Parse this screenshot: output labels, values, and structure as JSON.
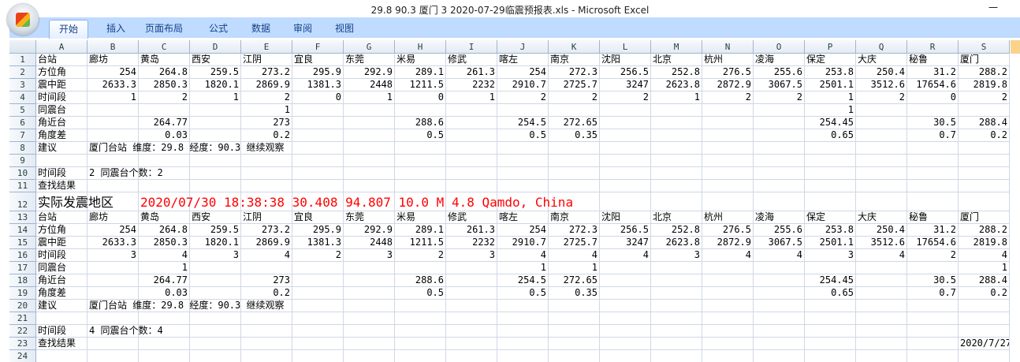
{
  "window": {
    "title": "29.8 90.3 厦门 3 2020-07-29临震预报表.xls - Microsoft Excel",
    "minimize": "—"
  },
  "ribbon": {
    "tabs": [
      "开始",
      "插入",
      "页面布局",
      "公式",
      "数据",
      "审阅",
      "视图"
    ],
    "active": "开始"
  },
  "columns": [
    "A",
    "B",
    "C",
    "D",
    "E",
    "F",
    "G",
    "H",
    "I",
    "J",
    "K",
    "L",
    "M",
    "N",
    "O",
    "P",
    "Q",
    "R",
    "S"
  ],
  "stations": [
    "台站",
    "廊坊",
    "黄岛",
    "西安",
    "江阴",
    "宜良",
    "东莞",
    "米易",
    "修武",
    "喀左",
    "南京",
    "沈阳",
    "北京",
    "杭州",
    "凌海",
    "保定",
    "大庆",
    "秘鲁",
    "厦门"
  ],
  "rows": [
    {
      "n": "1",
      "cells": [
        "台站",
        "廊坊",
        "黄岛",
        "西安",
        "江阴",
        "宜良",
        "东莞",
        "米易",
        "修武",
        "喀左",
        "南京",
        "沈阳",
        "北京",
        "杭州",
        "凌海",
        "保定",
        "大庆",
        "秘鲁",
        "厦门"
      ]
    },
    {
      "n": "2",
      "cells": [
        "方位角",
        "254",
        "264.8",
        "259.5",
        "273.2",
        "295.9",
        "292.9",
        "289.1",
        "261.3",
        "254",
        "272.3",
        "256.5",
        "252.8",
        "276.5",
        "255.6",
        "253.8",
        "250.4",
        "31.2",
        "288.2"
      ]
    },
    {
      "n": "3",
      "cells": [
        "震中距",
        "2633.3",
        "2850.3",
        "1820.1",
        "2869.9",
        "1381.3",
        "2448",
        "1211.5",
        "2232",
        "2910.7",
        "2725.7",
        "3247",
        "2623.8",
        "2872.9",
        "3067.5",
        "2501.1",
        "3512.6",
        "17654.6",
        "2819.8"
      ]
    },
    {
      "n": "4",
      "cells": [
        "时间段",
        "1",
        "2",
        "1",
        "2",
        "0",
        "1",
        "0",
        "1",
        "2",
        "2",
        "2",
        "1",
        "2",
        "2",
        "1",
        "2",
        "0",
        "2"
      ]
    },
    {
      "n": "5",
      "cells": [
        "同震台",
        "",
        "",
        "",
        "1",
        "",
        "",
        "",
        "",
        "",
        "",
        "",
        "",
        "",
        "",
        "1",
        "",
        "",
        ""
      ]
    },
    {
      "n": "6",
      "cells": [
        "角近台",
        "",
        "264.77",
        "",
        "273",
        "",
        "",
        "288.6",
        "",
        "254.5",
        "272.65",
        "",
        "",
        "",
        "",
        "254.45",
        "",
        "30.5",
        "288.4"
      ]
    },
    {
      "n": "7",
      "cells": [
        "角度差",
        "",
        "0.03",
        "",
        "0.2",
        "",
        "",
        "0.5",
        "",
        "0.5",
        "0.35",
        "",
        "",
        "",
        "",
        "0.65",
        "",
        "0.7",
        "0.2"
      ]
    },
    {
      "n": "8",
      "cells": [
        "建议",
        "厦门台站 维度：29.8 经度：90.3 继续观察"
      ]
    },
    {
      "n": "9",
      "cells": [
        ""
      ]
    },
    {
      "n": "10",
      "cells": [
        "时间段",
        "2  同震台个数：2"
      ]
    },
    {
      "n": "11",
      "cells": [
        "查找结果"
      ]
    },
    {
      "n": "12",
      "cells": [
        "实际发震地区",
        "2020/07/30 18:38:38 30.408 94.807 10.0 M 4.8 Qamdo, China"
      ]
    },
    {
      "n": "13",
      "cells": [
        "台站",
        "廊坊",
        "黄岛",
        "西安",
        "江阴",
        "宜良",
        "东莞",
        "米易",
        "修武",
        "喀左",
        "南京",
        "沈阳",
        "北京",
        "杭州",
        "凌海",
        "保定",
        "大庆",
        "秘鲁",
        "厦门"
      ]
    },
    {
      "n": "14",
      "cells": [
        "方位角",
        "254",
        "264.8",
        "259.5",
        "273.2",
        "295.9",
        "292.9",
        "289.1",
        "261.3",
        "254",
        "272.3",
        "256.5",
        "252.8",
        "276.5",
        "255.6",
        "253.8",
        "250.4",
        "31.2",
        "288.2"
      ]
    },
    {
      "n": "15",
      "cells": [
        "震中距",
        "2633.3",
        "2850.3",
        "1820.1",
        "2869.9",
        "1381.3",
        "2448",
        "1211.5",
        "2232",
        "2910.7",
        "2725.7",
        "3247",
        "2623.8",
        "2872.9",
        "3067.5",
        "2501.1",
        "3512.6",
        "17654.6",
        "2819.8"
      ]
    },
    {
      "n": "16",
      "cells": [
        "时间段",
        "3",
        "4",
        "3",
        "4",
        "2",
        "3",
        "2",
        "3",
        "4",
        "4",
        "4",
        "3",
        "4",
        "4",
        "3",
        "4",
        "2",
        "4"
      ]
    },
    {
      "n": "17",
      "cells": [
        "同震台",
        "",
        "1",
        "",
        "",
        "",
        "",
        "",
        "",
        "1",
        "1",
        "",
        "",
        "",
        "",
        "",
        "",
        "",
        "1"
      ]
    },
    {
      "n": "18",
      "cells": [
        "角近台",
        "",
        "264.77",
        "",
        "273",
        "",
        "",
        "288.6",
        "",
        "254.5",
        "272.65",
        "",
        "",
        "",
        "",
        "254.45",
        "",
        "30.5",
        "288.4"
      ]
    },
    {
      "n": "19",
      "cells": [
        "角度差",
        "",
        "0.03",
        "",
        "0.2",
        "",
        "",
        "0.5",
        "",
        "0.5",
        "0.35",
        "",
        "",
        "",
        "",
        "0.65",
        "",
        "0.7",
        "0.2"
      ]
    },
    {
      "n": "20",
      "cells": [
        "建议",
        "厦门台站 维度：29.8 经度：90.3 继续观察"
      ]
    },
    {
      "n": "21",
      "cells": [
        ""
      ]
    },
    {
      "n": "22",
      "cells": [
        "时间段",
        "4  同震台个数：4"
      ]
    },
    {
      "n": "23",
      "cells": [
        "查找结果",
        "",
        "",
        "",
        "",
        "",
        "",
        "",
        "",
        "",
        "",
        "",
        "",
        "",
        "",
        "",
        "",
        "",
        "2020/7/27"
      ]
    },
    {
      "n": "24",
      "cells": [
        ""
      ]
    }
  ],
  "colors": {
    "quake_text": "#ff0000",
    "ribbon_bg": "#bfdbff",
    "grid_line": "#d0d7e5"
  }
}
